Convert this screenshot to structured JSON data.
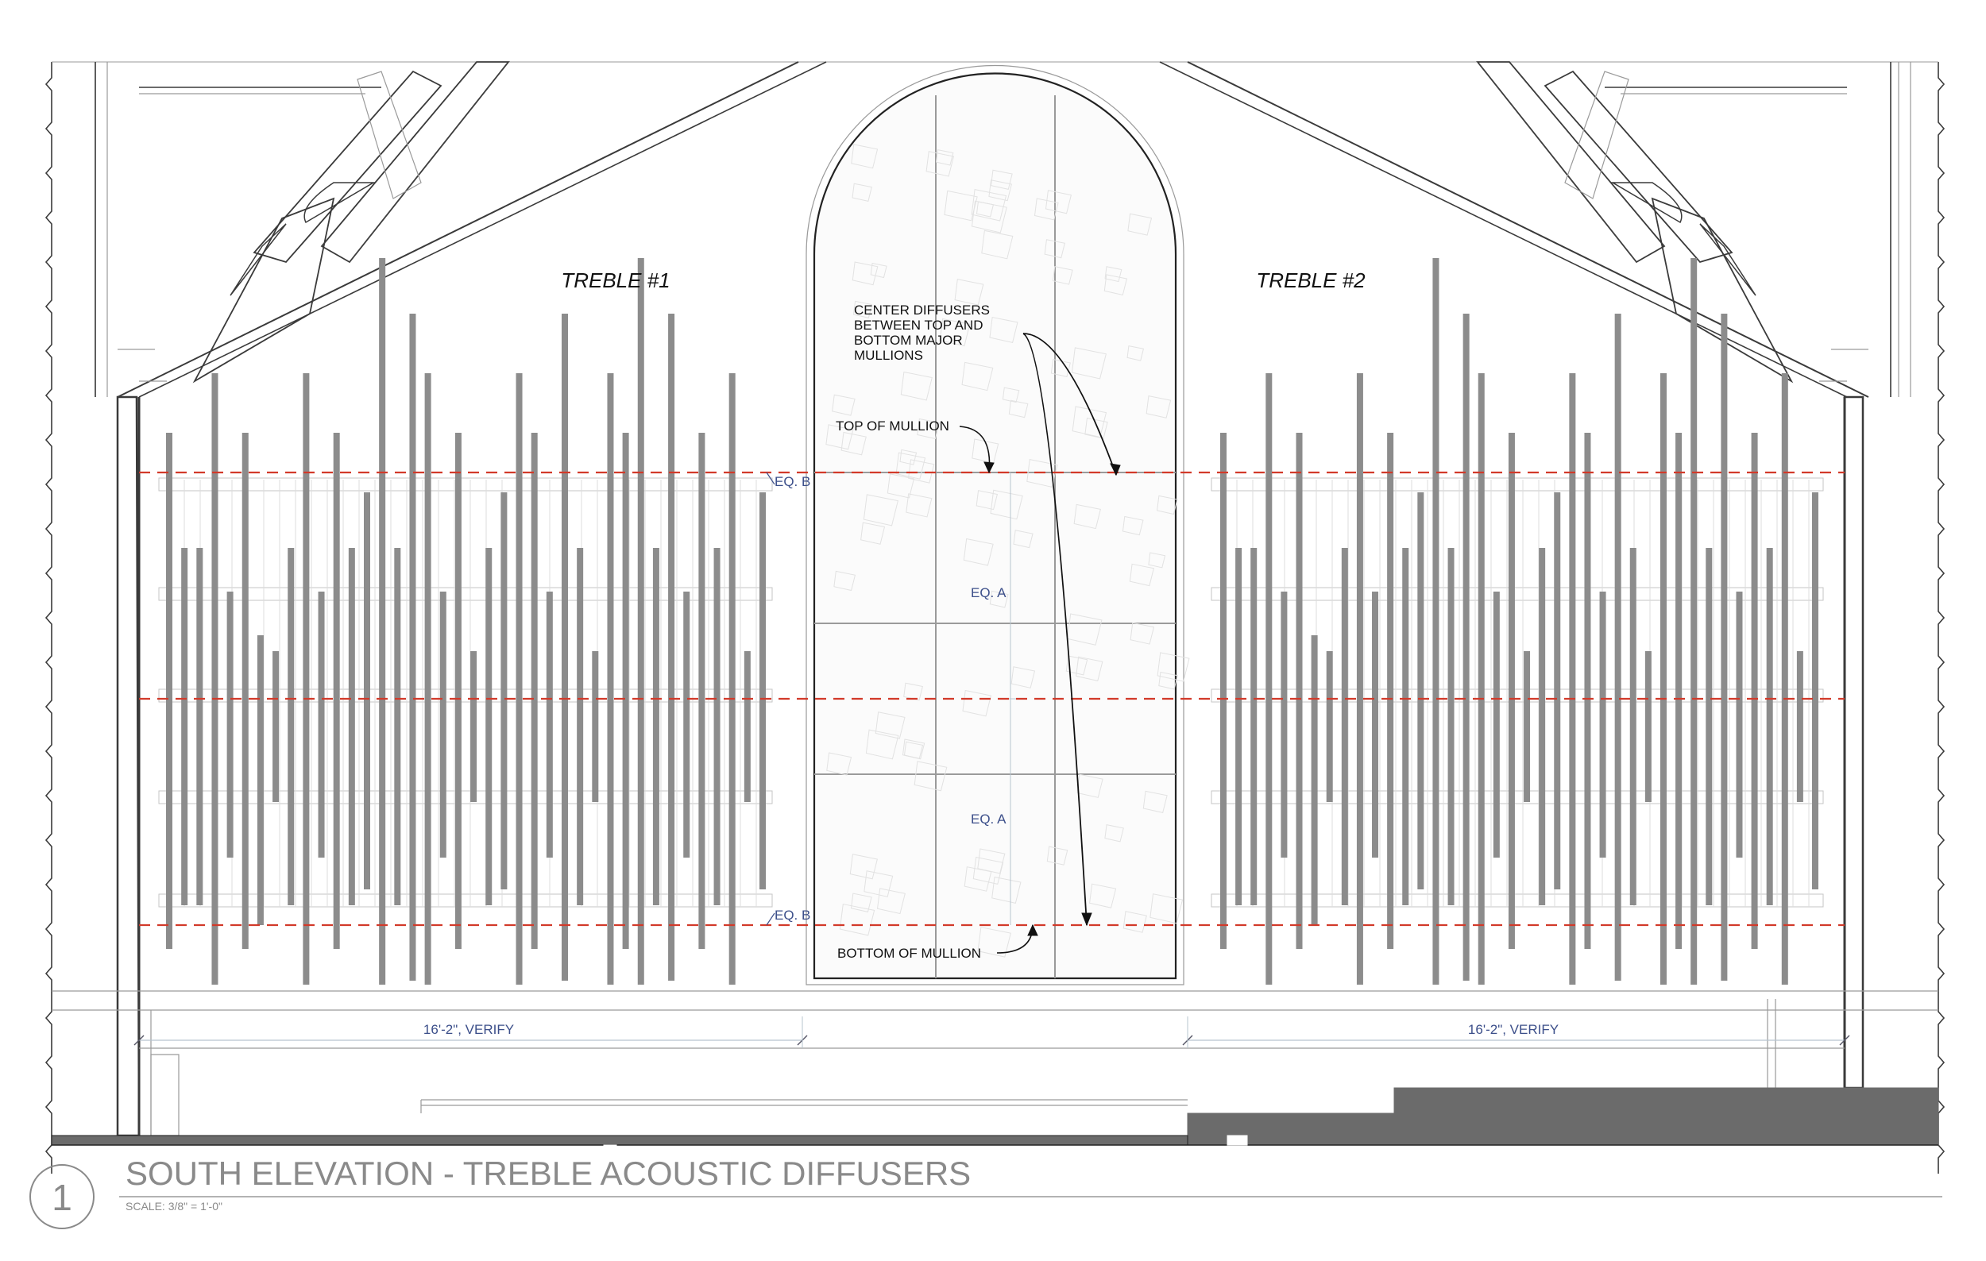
{
  "labels": {
    "treble_left": "TREBLE #1",
    "treble_right": "TREBLE #2",
    "center_note": [
      "CENTER DIFFUSERS",
      "BETWEEN TOP AND",
      "BOTTOM MAJOR",
      "MULLIONS"
    ],
    "top_mullion": "TOP OF MULLION",
    "bottom_mullion": "BOTTOM OF MULLION",
    "eq_b": "EQ. B",
    "eq_a": "EQ. A",
    "dim_left": "16'-2\", VERIFY",
    "dim_right": "16'-2\", VERIFY"
  },
  "title_block": {
    "number": "1",
    "title": "SOUTH ELEVATION - TREBLE ACOUSTIC DIFFUSERS",
    "scale": "SCALE: 3/8\"  =   1'-0\""
  },
  "colors": {
    "line": "#3a3a3a",
    "light_line": "#9a9a9a",
    "diffuser": "#8c8c8c",
    "guide": "#d23a2a",
    "dimension": "#3c4f8a",
    "floor": "#6b6b6b",
    "title": "#8a8a8a"
  }
}
